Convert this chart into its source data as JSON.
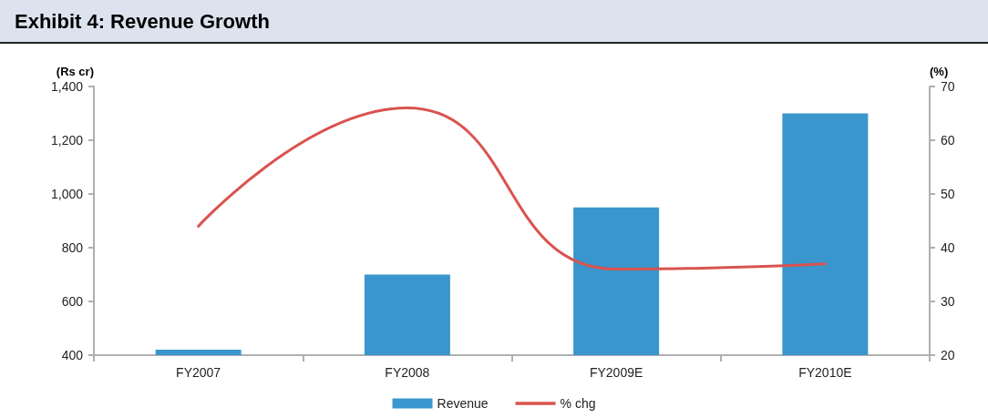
{
  "chart_data": {
    "type": "bar",
    "title": "Exhibit 4: Revenue Growth",
    "ylabel": "(Rs cr)",
    "y2label": "(%)",
    "categories": [
      "FY2007",
      "FY2008",
      "FY2009E",
      "FY2010E"
    ],
    "series": [
      {
        "name": "Revenue",
        "color": "#3a96cc",
        "values": [
          420,
          700,
          950,
          1300
        ]
      },
      {
        "name": "% chg",
        "type": "line",
        "axis": "y2",
        "color": "#d9534f",
        "values": [
          44,
          66,
          36,
          37
        ]
      }
    ],
    "ylim": [
      400,
      1400
    ],
    "yticks": [
      400,
      600,
      800,
      {
        "value": 1000,
        "label": "1,000"
      },
      {
        "value": 1200,
        "label": "1,200"
      },
      {
        "value": 1400,
        "label": "1,400"
      }
    ],
    "y2lim": [
      20,
      70
    ],
    "y2ticks": [
      20,
      30,
      40,
      50,
      60,
      70
    ],
    "legend": "bottom",
    "grid": false,
    "marker": "none",
    "line_style": "solid"
  }
}
